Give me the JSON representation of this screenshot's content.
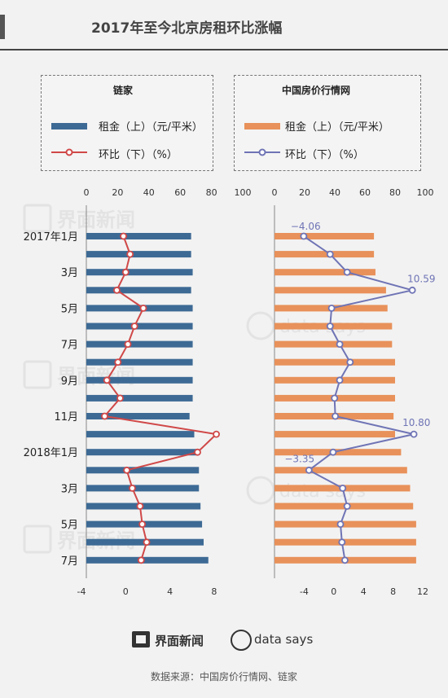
{
  "page": {
    "title": "2017年至今北京房租环比涨幅"
  },
  "legend_left": {
    "title": "链家",
    "rent_label": "租金（上）（元/平米）",
    "mom_label": "环比（下）（%）"
  },
  "legend_right": {
    "title": "中国房价行情网",
    "rent_label": "租金（上）（元/平米）",
    "mom_label": "环比（下）（%）"
  },
  "colors": {
    "blue_bar": "#3d6a95",
    "red_line": "#d04848",
    "orange_bar": "#e8915a",
    "purple_line": "#6f74b5"
  },
  "footer": {
    "brand1": "界面新闻",
    "brand2": "data says",
    "source": "数据来源：中国房价行情网、链家"
  },
  "watermark": {
    "brand1": "界面新闻",
    "brand2": "data says"
  },
  "chart_data": [
    {
      "type": "bar+line",
      "source": "链家",
      "categories": [
        "2017年1月",
        "",
        "3月",
        "",
        "5月",
        "",
        "7月",
        "",
        "9月",
        "",
        "11月",
        "",
        "2018年1月",
        "",
        "3月",
        "",
        "5月",
        "",
        "7月"
      ],
      "top_axis": {
        "label": "",
        "range": [
          0,
          100
        ],
        "ticks": [
          "0",
          "20",
          "40",
          "60",
          "80",
          "100"
        ]
      },
      "bottom_axis": {
        "label": "",
        "range": [
          -4,
          10
        ],
        "ticks": [
          "-4",
          "0",
          "4",
          "8"
        ]
      },
      "series": [
        {
          "name": "租金（上）（元/平米）",
          "type": "bar",
          "values": [
            67,
            67,
            68,
            67,
            68,
            68,
            68,
            68,
            68,
            68,
            66,
            69,
            72,
            72,
            72,
            73,
            74,
            75,
            78
          ]
        },
        {
          "name": "环比（下）（%）",
          "type": "line",
          "values": [
            -0.2,
            0.4,
            0,
            -0.8,
            1.6,
            0.8,
            0.2,
            -0.7,
            -1.7,
            -0.5,
            -1.9,
            8.2,
            6.5,
            0.1,
            0.6,
            1.3,
            1.5,
            1.9,
            1.4
          ]
        }
      ]
    },
    {
      "type": "bar+line",
      "source": "中国房价行情网",
      "categories": [
        "2017年1月",
        "",
        "3月",
        "",
        "5月",
        "",
        "7月",
        "",
        "9月",
        "",
        "11月",
        "",
        "2018年1月",
        "",
        "3月",
        "",
        "5月",
        "",
        "7月"
      ],
      "top_axis": {
        "label": "",
        "range": [
          0,
          100
        ],
        "ticks": [
          "0",
          "20",
          "40",
          "60",
          "80",
          "100"
        ]
      },
      "bottom_axis": {
        "label": "",
        "range": [
          -8,
          12
        ],
        "ticks": [
          "-4",
          "0",
          "4",
          "8",
          "12"
        ]
      },
      "annotations": [
        "−4.06",
        "10.59",
        "10.80",
        "−3.35"
      ],
      "series": [
        {
          "name": "租金（上）（元/平米）",
          "type": "bar",
          "values": [
            66,
            66,
            67,
            74,
            75,
            78,
            78,
            80,
            80,
            80,
            79,
            80,
            84,
            88,
            90,
            92,
            94,
            94,
            94
          ]
        },
        {
          "name": "环比（下）（%）",
          "type": "line",
          "values": [
            -4.06,
            -0.5,
            1.8,
            10.59,
            -0.3,
            -0.5,
            0.8,
            2.2,
            0.8,
            0.1,
            0.2,
            10.8,
            -0.1,
            -3.35,
            1.2,
            1.8,
            0.9,
            1.1,
            1.5
          ]
        }
      ]
    }
  ]
}
